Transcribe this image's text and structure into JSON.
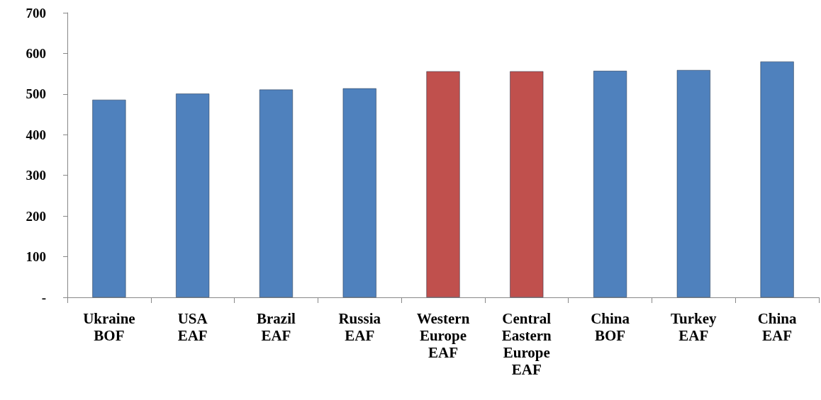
{
  "chart_data": {
    "type": "bar",
    "categories": [
      "Ukraine BOF",
      "USA EAF",
      "Brazil EAF",
      "Russia EAF",
      "Western Europe EAF",
      "Central Eastern Europe EAF",
      "China BOF",
      "Turkey EAF",
      "China EAF"
    ],
    "values": [
      486,
      501,
      511,
      514,
      556,
      556,
      557,
      559,
      580
    ],
    "colors": [
      "#4f81bd",
      "#4f81bd",
      "#4f81bd",
      "#4f81bd",
      "#c0504d",
      "#c0504d",
      "#4f81bd",
      "#4f81bd",
      "#4f81bd"
    ],
    "ylim": [
      0,
      700
    ],
    "yticks": [
      {
        "value": 0,
        "label": "-"
      },
      100,
      200,
      300,
      400,
      500,
      600,
      700
    ]
  }
}
